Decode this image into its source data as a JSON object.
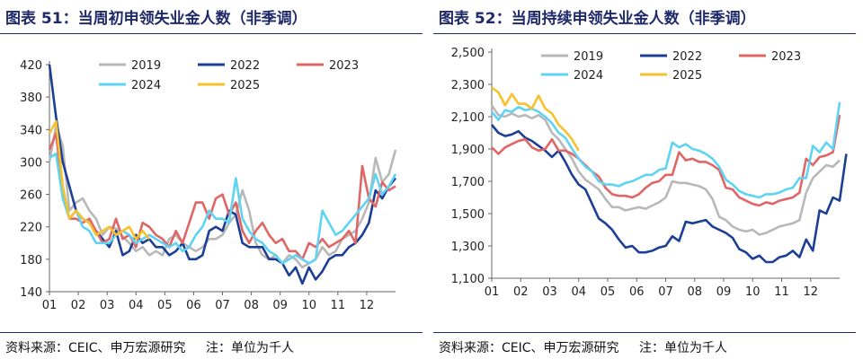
{
  "colors": {
    "2019": "#b8b8b8",
    "2022": "#1c3f95",
    "2023": "#e06666",
    "2024": "#5fd3f3",
    "2025": "#f6c12b",
    "title": "#1f2a6b"
  },
  "chart_data": [
    {
      "type": "line",
      "title": "图表 51：当周初申领失业金人数（非季调）",
      "unit_note": "注：单位为千人",
      "source": "资料来源：CEIC、申万宏源研究",
      "legend_placement": "top",
      "grid": false,
      "ylim": [
        140,
        420
      ],
      "yticks": [
        "140",
        "180",
        "220",
        "260",
        "300",
        "340",
        "380",
        "420"
      ],
      "ytick_values": [
        140,
        180,
        220,
        260,
        300,
        340,
        380,
        420
      ],
      "xticks": [
        "01",
        "02",
        "03",
        "04",
        "05",
        "06",
        "07",
        "08",
        "09",
        "10",
        "11",
        "12"
      ],
      "xlim": [
        1,
        53
      ],
      "series": [
        {
          "name": "2019",
          "color_key": "2019",
          "values": [
            300,
            345,
            320,
            240,
            250,
            255,
            240,
            230,
            210,
            220,
            218,
            208,
            200,
            190,
            195,
            185,
            190,
            185,
            205,
            210,
            200,
            195,
            190,
            195,
            205,
            205,
            210,
            225,
            235,
            265,
            240,
            200,
            185,
            180,
            185,
            175,
            185,
            180,
            170,
            175,
            180,
            195,
            185,
            190,
            205,
            210,
            215,
            230,
            250,
            305,
            275,
            285,
            315
          ]
        },
        {
          "name": "2022",
          "color_key": "2022",
          "values": [
            420,
            355,
            300,
            270,
            240,
            230,
            225,
            215,
            205,
            195,
            215,
            185,
            190,
            210,
            200,
            205,
            195,
            195,
            185,
            190,
            200,
            180,
            180,
            185,
            215,
            220,
            215,
            240,
            235,
            200,
            195,
            195,
            195,
            180,
            180,
            175,
            160,
            170,
            150,
            170,
            155,
            165,
            180,
            185,
            185,
            195,
            200,
            210,
            225,
            265,
            255,
            270,
            280
          ]
        },
        {
          "name": "2023",
          "color_key": "2023",
          "values": [
            315,
            335,
            260,
            230,
            230,
            225,
            230,
            215,
            200,
            205,
            230,
            205,
            210,
            195,
            225,
            220,
            210,
            205,
            195,
            215,
            200,
            225,
            250,
            250,
            230,
            255,
            260,
            235,
            250,
            215,
            200,
            215,
            225,
            210,
            200,
            205,
            190,
            190,
            180,
            200,
            195,
            205,
            195,
            200,
            205,
            215,
            200,
            295,
            255,
            245,
            275,
            265,
            270
          ]
        },
        {
          "name": "2024",
          "color_key": "2024",
          "values": [
            305,
            310,
            255,
            230,
            240,
            220,
            215,
            200,
            200,
            200,
            210,
            215,
            210,
            200,
            205,
            210,
            205,
            200,
            195,
            200,
            190,
            195,
            210,
            220,
            240,
            230,
            230,
            225,
            280,
            230,
            215,
            205,
            200,
            190,
            185,
            175,
            180,
            185,
            180,
            175,
            180,
            240,
            225,
            210,
            215,
            225,
            235,
            245,
            255,
            285,
            260,
            270,
            285
          ]
        },
        {
          "name": "2025",
          "color_key": "2025",
          "values": [
            335,
            350,
            270,
            230,
            240,
            230,
            225,
            210,
            215,
            220,
            210,
            215,
            220,
            205,
            215,
            205
          ]
        }
      ]
    },
    {
      "type": "line",
      "title": "图表 52：当周持续申领失业金人数（非季调）",
      "unit_note": "注：单位为千人",
      "source": "资料来源：CEIC、申万宏源研究",
      "legend_placement": "top",
      "grid": false,
      "ylim": [
        1100,
        2500
      ],
      "yticks": [
        "1,100",
        "1,300",
        "1,500",
        "1,700",
        "1,900",
        "2,100",
        "2,300",
        "2,500"
      ],
      "ytick_values": [
        1100,
        1300,
        1500,
        1700,
        1900,
        2100,
        2300,
        2500
      ],
      "xticks": [
        "01",
        "02",
        "03",
        "04",
        "05",
        "06",
        "07",
        "08",
        "09",
        "10",
        "11",
        "12"
      ],
      "xlim": [
        1,
        53
      ],
      "series": [
        {
          "name": "2019",
          "color_key": "2019",
          "values": [
            2170,
            2110,
            2100,
            2120,
            2100,
            2110,
            2090,
            2110,
            2080,
            2000,
            1960,
            1900,
            1840,
            1760,
            1710,
            1680,
            1650,
            1590,
            1540,
            1540,
            1520,
            1530,
            1540,
            1530,
            1550,
            1570,
            1600,
            1700,
            1690,
            1690,
            1680,
            1670,
            1650,
            1590,
            1480,
            1460,
            1420,
            1400,
            1390,
            1400,
            1370,
            1380,
            1400,
            1420,
            1430,
            1440,
            1460,
            1630,
            1720,
            1760,
            1800,
            1790,
            1830
          ]
        },
        {
          "name": "2022",
          "color_key": "2022",
          "values": [
            2050,
            2000,
            1980,
            1990,
            2010,
            1970,
            1950,
            1920,
            1890,
            1850,
            1890,
            1820,
            1740,
            1680,
            1650,
            1560,
            1470,
            1440,
            1400,
            1340,
            1290,
            1300,
            1260,
            1260,
            1270,
            1290,
            1300,
            1360,
            1330,
            1450,
            1440,
            1450,
            1460,
            1420,
            1400,
            1380,
            1350,
            1280,
            1260,
            1220,
            1240,
            1200,
            1200,
            1230,
            1240,
            1270,
            1230,
            1340,
            1270,
            1520,
            1500,
            1600,
            1580,
            1870
          ]
        },
        {
          "name": "2023",
          "color_key": "2023",
          "values": [
            1910,
            1870,
            1910,
            1930,
            1950,
            1960,
            1910,
            1890,
            1900,
            1960,
            1890,
            1890,
            1870,
            1840,
            1800,
            1760,
            1730,
            1660,
            1620,
            1610,
            1610,
            1600,
            1620,
            1660,
            1690,
            1700,
            1740,
            1740,
            1880,
            1830,
            1840,
            1820,
            1820,
            1800,
            1770,
            1660,
            1650,
            1600,
            1580,
            1560,
            1550,
            1570,
            1560,
            1580,
            1590,
            1600,
            1630,
            1840,
            1800,
            1850,
            1860,
            1880,
            2110
          ]
        },
        {
          "name": "2024",
          "color_key": "2024",
          "values": [
            2130,
            2080,
            2140,
            2130,
            2160,
            2140,
            2150,
            2130,
            2100,
            2060,
            2000,
            1970,
            1900,
            1840,
            1790,
            1760,
            1700,
            1680,
            1680,
            1670,
            1690,
            1700,
            1720,
            1740,
            1740,
            1770,
            1780,
            1940,
            1910,
            1930,
            1900,
            1890,
            1870,
            1840,
            1790,
            1710,
            1680,
            1640,
            1620,
            1610,
            1600,
            1620,
            1620,
            1630,
            1650,
            1660,
            1720,
            1720,
            1920,
            1880,
            1940,
            1900,
            2190
          ]
        },
        {
          "name": "2025",
          "color_key": "2025",
          "values": [
            2280,
            2250,
            2170,
            2240,
            2180,
            2180,
            2150,
            2230,
            2150,
            2120,
            2050,
            2010,
            1960,
            1890
          ]
        }
      ]
    }
  ]
}
